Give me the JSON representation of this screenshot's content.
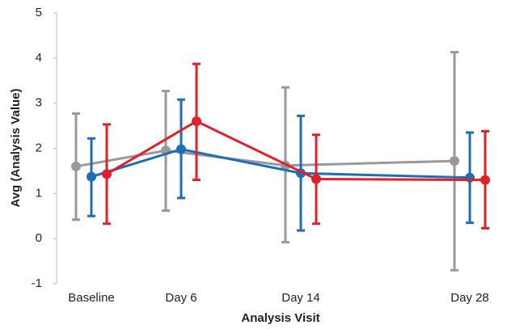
{
  "chart_data": {
    "type": "errorline",
    "x_label": "Analysis Visit",
    "y_label": "Avg (Analysis Value)",
    "categories": [
      "Baseline",
      "Day 6",
      "Day 14",
      "Day 28"
    ],
    "series": [
      {
        "color": "#999999",
        "values": [
          1.6,
          1.95,
          1.62,
          1.72
        ],
        "lower": [
          0.42,
          0.62,
          -0.08,
          -0.7
        ],
        "upper": [
          2.77,
          3.27,
          3.35,
          4.13
        ]
      },
      {
        "color": "#1f6db5",
        "values": [
          1.37,
          1.98,
          1.45,
          1.35
        ],
        "lower": [
          0.5,
          0.9,
          0.18,
          0.35
        ],
        "upper": [
          2.22,
          3.08,
          2.72,
          2.35
        ]
      },
      {
        "color": "#e0202a",
        "values": [
          1.43,
          2.6,
          1.32,
          1.3
        ],
        "lower": [
          0.33,
          1.3,
          0.33,
          0.23
        ],
        "upper": [
          2.53,
          3.87,
          2.3,
          2.38
        ]
      }
    ],
    "ylim": [
      -1,
      5
    ],
    "yticks": [
      -1,
      0,
      1,
      2,
      3,
      4,
      5
    ]
  }
}
